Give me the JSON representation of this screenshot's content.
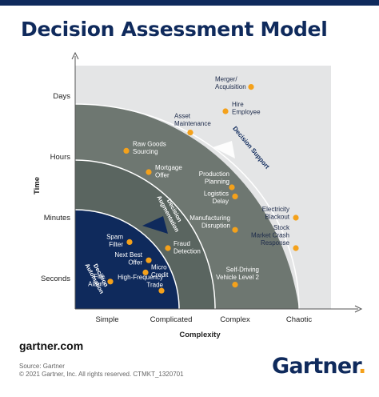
{
  "title": "Decision Assessment Model",
  "footer": {
    "site": "gartner.com",
    "source": "Source: Gartner",
    "copyright": "© 2021 Gartner, Inc. All rights reserved. CTMKT_1320701",
    "logo_text": "Gartner",
    "logo_dot": "."
  },
  "colors": {
    "title": "#0f2a5c",
    "zone_outer_bg": "#e4e5e6",
    "zone_support": "#6e7771",
    "zone_augmentation": "#5a6560",
    "zone_automation": "#0f2a5c",
    "point": "#f4a11b"
  },
  "chart_data": {
    "type": "scatter",
    "xlabel": "Complexity",
    "ylabel": "Time",
    "x_categories": [
      "Simple",
      "Complicated",
      "Complex",
      "Chaotic"
    ],
    "y_categories": [
      "Seconds",
      "Minutes",
      "Hours",
      "Days"
    ],
    "zones": [
      {
        "name": "Decision Support"
      },
      {
        "name": "Decision Augmentation"
      },
      {
        "name": "Decision Automation"
      }
    ],
    "points": [
      {
        "label": "Merger/ Acquisition",
        "x": 3.25,
        "y": 4.15
      },
      {
        "label": "Hire Employee",
        "x": 2.85,
        "y": 3.75
      },
      {
        "label": "Asset Maintenance",
        "x": 2.3,
        "y": 3.4
      },
      {
        "label": "Raw Goods Sourcing",
        "x": 1.3,
        "y": 3.1
      },
      {
        "label": "Mortgage Offer",
        "x": 1.65,
        "y": 2.75
      },
      {
        "label": "Production Planning",
        "x": 2.95,
        "y": 2.5
      },
      {
        "label": "Logistics Delay",
        "x": 3.0,
        "y": 2.35
      },
      {
        "label": "Electricity Blackout",
        "x": 3.95,
        "y": 2.0
      },
      {
        "label": "Manufacturing Disruption",
        "x": 3.0,
        "y": 1.8
      },
      {
        "label": "Stock Market Crash Response",
        "x": 3.95,
        "y": 1.5
      },
      {
        "label": "Spam Filter",
        "x": 1.35,
        "y": 1.6
      },
      {
        "label": "Next Best Offer",
        "x": 1.65,
        "y": 1.3
      },
      {
        "label": "Fraud Detection",
        "x": 1.95,
        "y": 1.5
      },
      {
        "label": "Micro Credit",
        "x": 1.6,
        "y": 1.1
      },
      {
        "label": "Fire Alarm",
        "x": 1.05,
        "y": 0.95
      },
      {
        "label": "High-Frequency Trade",
        "x": 1.85,
        "y": 0.8
      },
      {
        "label": "Self-Driving Vehicle Level 2",
        "x": 3.0,
        "y": 0.9
      }
    ]
  }
}
